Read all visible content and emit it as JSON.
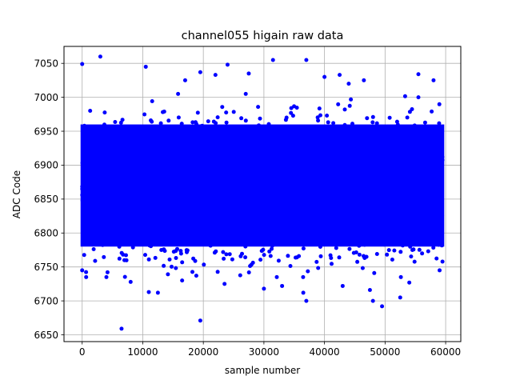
{
  "chart_data": {
    "type": "scatter",
    "title": "channel055 higain raw data",
    "xlabel": "sample number",
    "ylabel": "ADC Code",
    "xlim": [
      -3000,
      62500
    ],
    "ylim": [
      6640,
      7075
    ],
    "xticks": [
      0,
      10000,
      20000,
      30000,
      40000,
      50000,
      60000
    ],
    "yticks": [
      6650,
      6700,
      6750,
      6800,
      6850,
      6900,
      6950,
      7000,
      7050
    ],
    "grid": true,
    "series": [
      {
        "color": "#0000ff",
        "band": {
          "x_range": [
            0,
            59500
          ],
          "y_dense_range": [
            6780,
            6960
          ],
          "y_spread_range": [
            6735,
            7005
          ]
        },
        "outliers": [
          {
            "x": 0,
            "y": 7049
          },
          {
            "x": 3000,
            "y": 7060
          },
          {
            "x": 10500,
            "y": 7045
          },
          {
            "x": 24000,
            "y": 7048
          },
          {
            "x": 31500,
            "y": 7055
          },
          {
            "x": 37000,
            "y": 7055
          },
          {
            "x": 19500,
            "y": 7037
          },
          {
            "x": 27500,
            "y": 7035
          },
          {
            "x": 42500,
            "y": 7033
          },
          {
            "x": 55500,
            "y": 7034
          },
          {
            "x": 17000,
            "y": 7025
          },
          {
            "x": 22000,
            "y": 7033
          },
          {
            "x": 40000,
            "y": 7030
          },
          {
            "x": 44000,
            "y": 7020
          },
          {
            "x": 46500,
            "y": 7025
          },
          {
            "x": 58000,
            "y": 7025
          },
          {
            "x": 6500,
            "y": 6659
          },
          {
            "x": 19500,
            "y": 6671
          },
          {
            "x": 49500,
            "y": 6692
          },
          {
            "x": 52500,
            "y": 6705
          },
          {
            "x": 48000,
            "y": 6700
          },
          {
            "x": 37000,
            "y": 6700
          },
          {
            "x": 11000,
            "y": 6713
          },
          {
            "x": 12500,
            "y": 6712
          },
          {
            "x": 30000,
            "y": 6718
          },
          {
            "x": 36500,
            "y": 6712
          },
          {
            "x": 0,
            "y": 6745
          },
          {
            "x": 4000,
            "y": 6735
          },
          {
            "x": 8000,
            "y": 6728
          },
          {
            "x": 16500,
            "y": 6730
          },
          {
            "x": 23500,
            "y": 6725
          },
          {
            "x": 33000,
            "y": 6722
          },
          {
            "x": 43000,
            "y": 6722
          },
          {
            "x": 47500,
            "y": 6716
          },
          {
            "x": 54000,
            "y": 6727
          },
          {
            "x": 59000,
            "y": 6745
          }
        ]
      }
    ]
  }
}
